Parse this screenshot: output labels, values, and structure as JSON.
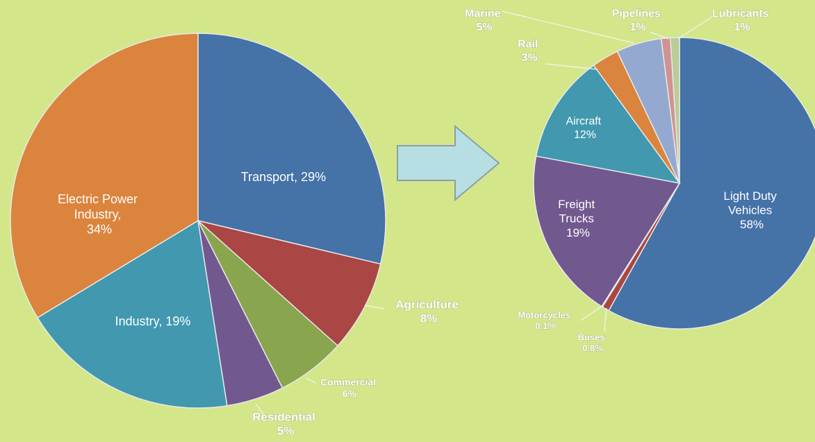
{
  "chart_data": [
    {
      "type": "pie",
      "values": [
        29,
        8,
        6,
        5,
        19,
        34
      ],
      "value_labels": [
        "Transport, 29%",
        "Agriculture 8%",
        "Commercial 6%",
        "Residential 5%",
        "Industry, 19%",
        "Electric Power Industry, 34%"
      ],
      "colors": [
        "#4572a7",
        "#aa4643",
        "#89a54e",
        "#71588f",
        "#4198af",
        "#db843d"
      ]
    },
    {
      "type": "pie",
      "values": [
        58,
        0.8,
        0.1,
        19,
        12,
        3,
        5,
        1,
        1
      ],
      "value_labels": [
        "Light Duty Vehicles 58%",
        "Buses 0.8%",
        "Motorcycles 0.1%",
        "Freight Trucks 19%",
        "Aircraft 12%",
        "Rail 3%",
        "Marine 5%",
        "Pipelines 1%",
        "Lubricants 1%"
      ],
      "colors": [
        "#4572a7",
        "#aa4643",
        "#89a54e",
        "#71588f",
        "#4198af",
        "#db843d",
        "#93a9cf",
        "#d19392",
        "#b9cd96"
      ]
    }
  ]
}
